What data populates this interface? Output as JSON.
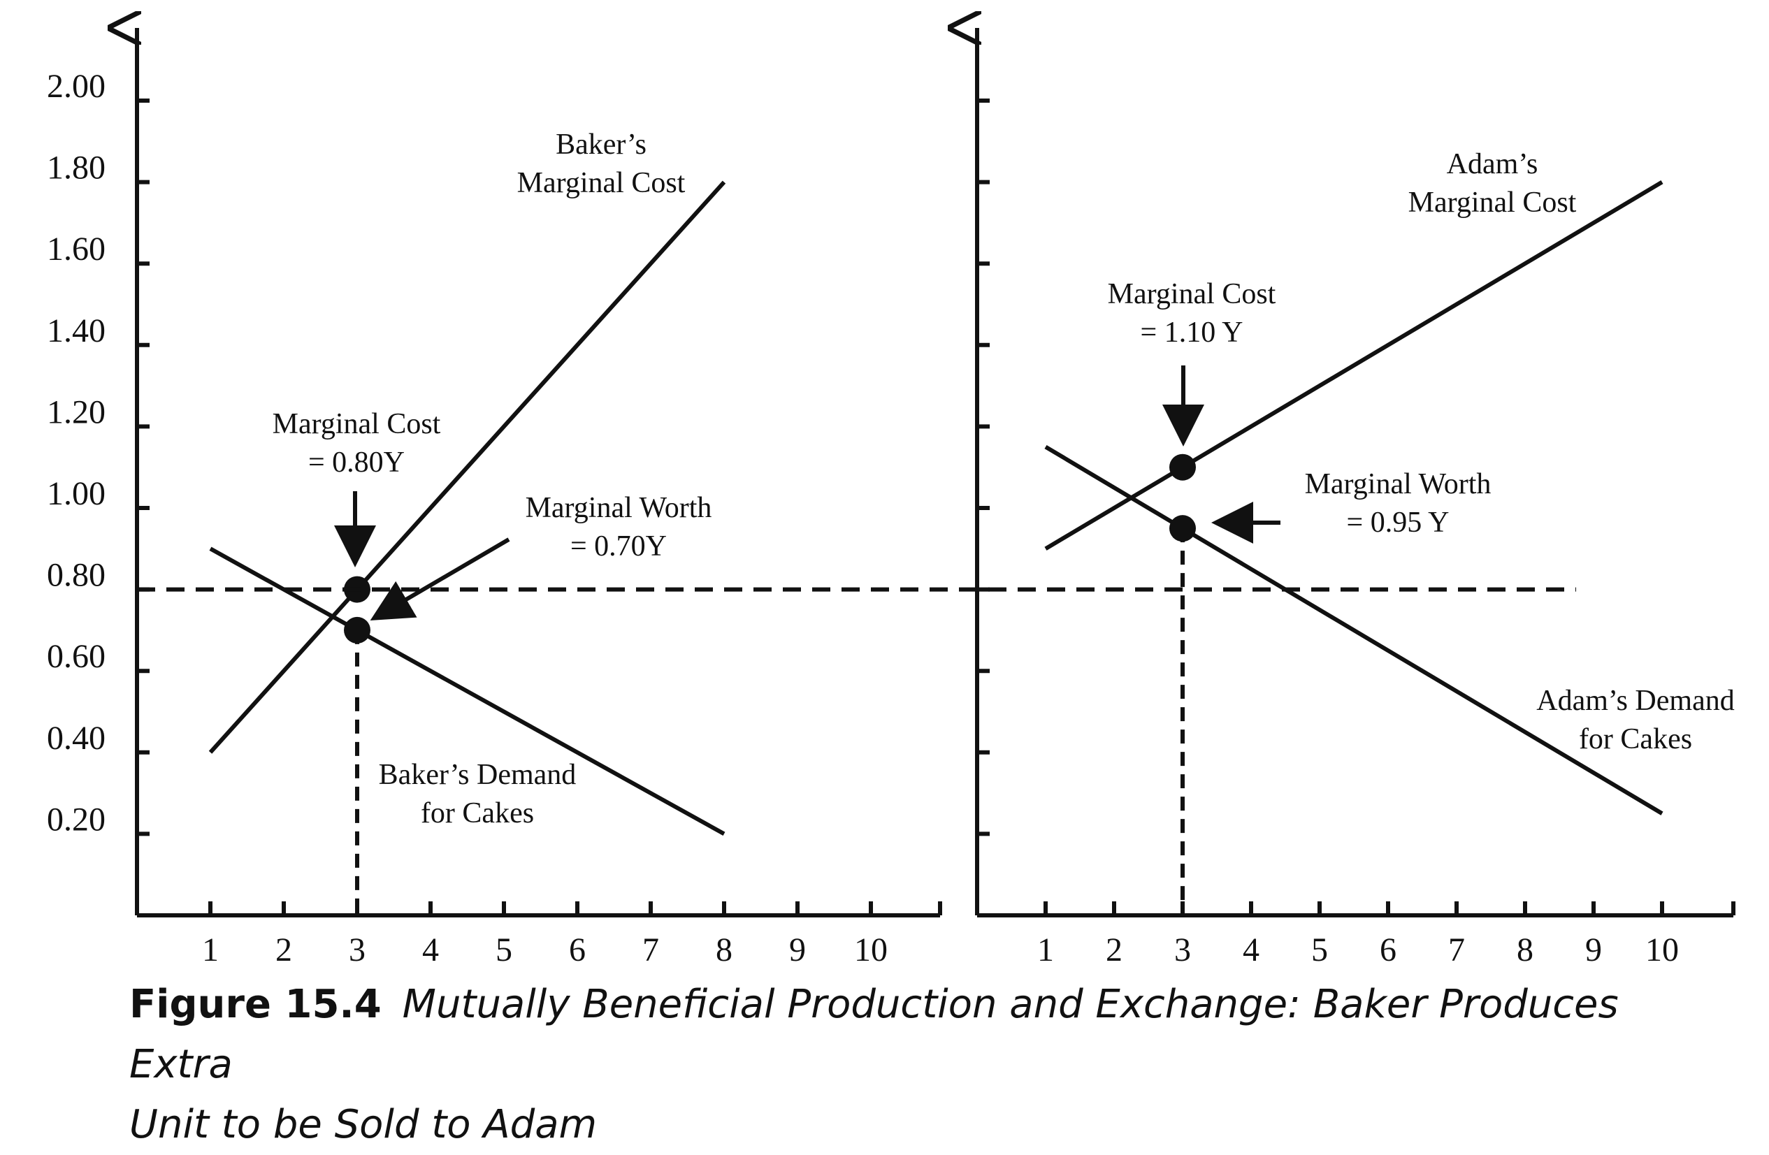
{
  "chart_data": [
    {
      "type": "line",
      "panel": "left",
      "y_ticks": [
        "0.20",
        "0.40",
        "0.60",
        "0.80",
        "1.00",
        "1.20",
        "1.40",
        "1.60",
        "1.80",
        "2.00"
      ],
      "x_ticks": [
        "1",
        "2",
        "3",
        "4",
        "5",
        "6",
        "7",
        "8",
        "9",
        "10"
      ],
      "xlim": [
        0,
        11
      ],
      "ylim": [
        0,
        2.2
      ],
      "series": [
        {
          "name": "Baker’s Marginal Cost",
          "x": [
            1,
            8
          ],
          "y": [
            0.4,
            1.8
          ]
        },
        {
          "name": "Baker’s Demand for Cakes",
          "x": [
            1,
            8
          ],
          "y": [
            0.9,
            0.2
          ]
        }
      ],
      "guides": {
        "horizontal_dashed_y": 0.8,
        "vertical_dashed_x": 3
      },
      "points": [
        {
          "x": 3,
          "y": 0.8,
          "label": "Marginal Cost = 0.80Y"
        },
        {
          "x": 3,
          "y": 0.7,
          "label": "Marginal Worth = 0.70Y"
        }
      ],
      "annotations": {
        "mc_curve": [
          "Baker’s",
          "Marginal Cost"
        ],
        "demand_curve": [
          "Baker’s Demand",
          "for Cakes"
        ],
        "mc_point": [
          "Marginal Cost",
          "= 0.80Y"
        ],
        "worth_point": [
          "Marginal Worth",
          "= 0.70Y"
        ]
      }
    },
    {
      "type": "line",
      "panel": "right",
      "x_ticks": [
        "1",
        "2",
        "3",
        "4",
        "5",
        "6",
        "7",
        "8",
        "9",
        "10"
      ],
      "xlim": [
        0,
        11
      ],
      "ylim": [
        0,
        2.2
      ],
      "series": [
        {
          "name": "Adam’s Marginal Cost",
          "x": [
            1,
            10
          ],
          "y": [
            0.9,
            1.8
          ]
        },
        {
          "name": "Adam’s Demand for Cakes",
          "x": [
            1,
            10
          ],
          "y": [
            1.15,
            0.25
          ]
        }
      ],
      "guides": {
        "horizontal_dashed_y": 0.8,
        "vertical_dashed_x": 3
      },
      "points": [
        {
          "x": 3,
          "y": 1.1,
          "label": "Marginal Cost = 1.10 Y"
        },
        {
          "x": 3,
          "y": 0.95,
          "label": "Marginal Worth = 0.95 Y"
        }
      ],
      "annotations": {
        "mc_curve": [
          "Adam’s",
          "Marginal Cost"
        ],
        "demand_curve": [
          "Adam’s Demand",
          "for Cakes"
        ],
        "mc_point": [
          "Marginal Cost",
          "= 1.10 Y"
        ],
        "worth_point": [
          "Marginal Worth",
          "= 0.95 Y"
        ]
      }
    }
  ],
  "caption": {
    "label": "Figure 15.4",
    "title_line1": "Mutually Beneficial Production and Exchange: Baker Produces Extra",
    "title_line2": "Unit to be Sold to Adam"
  }
}
